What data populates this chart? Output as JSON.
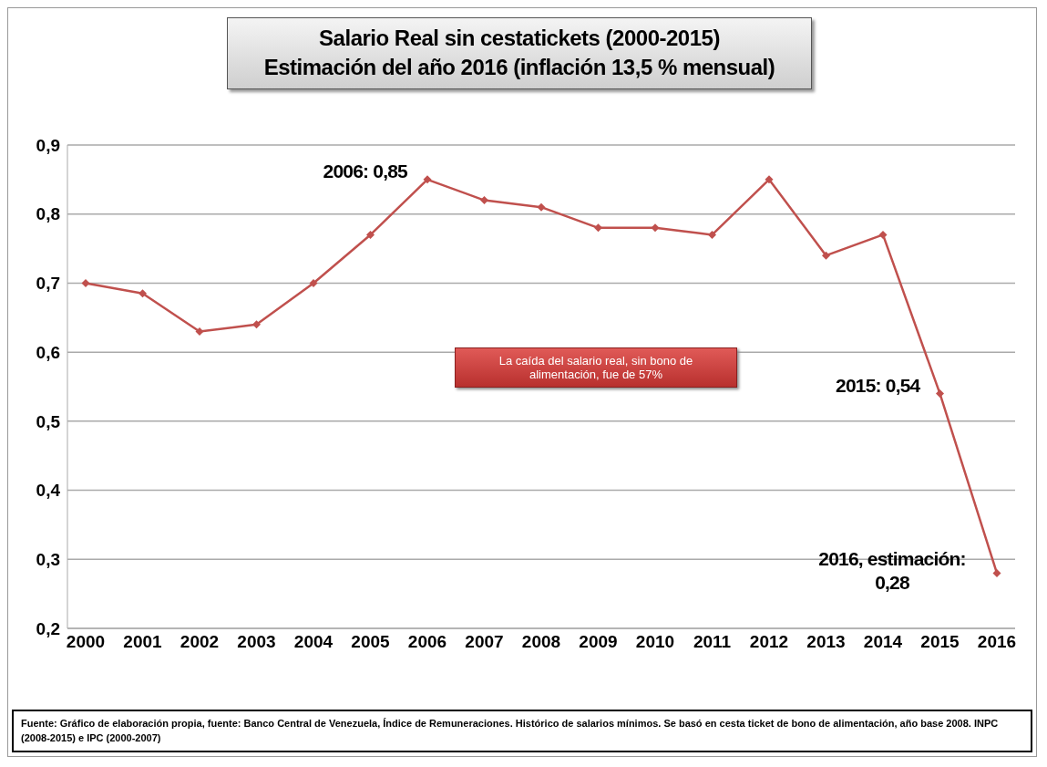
{
  "chart_data": {
    "type": "line",
    "title": "Salario Real sin cestatickets (2000-2015)\nEstimación del año 2016 (inflación 13,5 % mensual)",
    "categories": [
      "2000",
      "2001",
      "2002",
      "2003",
      "2004",
      "2005",
      "2006",
      "2007",
      "2008",
      "2009",
      "2010",
      "2011",
      "2012",
      "2013",
      "2014",
      "2015",
      "2016"
    ],
    "series": [
      {
        "color": "#c0504d",
        "values": [
          0.7,
          0.685,
          0.63,
          0.64,
          0.7,
          0.77,
          0.85,
          0.82,
          0.81,
          0.78,
          0.78,
          0.77,
          0.85,
          0.74,
          0.77,
          0.54,
          0.28
        ]
      }
    ],
    "ylim": [
      0.2,
      0.9
    ],
    "yticks": [
      {
        "value": 0.2,
        "label": "0,2"
      },
      {
        "value": 0.3,
        "label": "0,3"
      },
      {
        "value": 0.4,
        "label": "0,4"
      },
      {
        "value": 0.5,
        "label": "0,5"
      },
      {
        "value": 0.6,
        "label": "0,6"
      },
      {
        "value": 0.7,
        "label": "0,7"
      },
      {
        "value": 0.8,
        "label": "0,8"
      },
      {
        "value": 0.9,
        "label": "0,9"
      }
    ],
    "grid": "y",
    "legend": false,
    "marker": "diamond",
    "line_style": "solid",
    "annotations": [
      {
        "text": "2006: 0,85",
        "x": "2006",
        "y": 0.85
      },
      {
        "text": "2015: 0,54",
        "x": "2015",
        "y": 0.54
      },
      {
        "text": "2016, estimación:\n0,28",
        "x": "2016",
        "y": 0.28
      },
      "La caída del salario real, sin bono de alimentación, fue de 57%",
      "Fuente: Gráfico de elaboración propia, fuente: Banco Central de Venezuela, Índice de Remuneraciones. Histórico de salarios mínimos. Se basó en cesta ticket de bono de alimentación, año base 2008. INPC (2008-2015) e IPC (2000-2007)"
    ]
  }
}
